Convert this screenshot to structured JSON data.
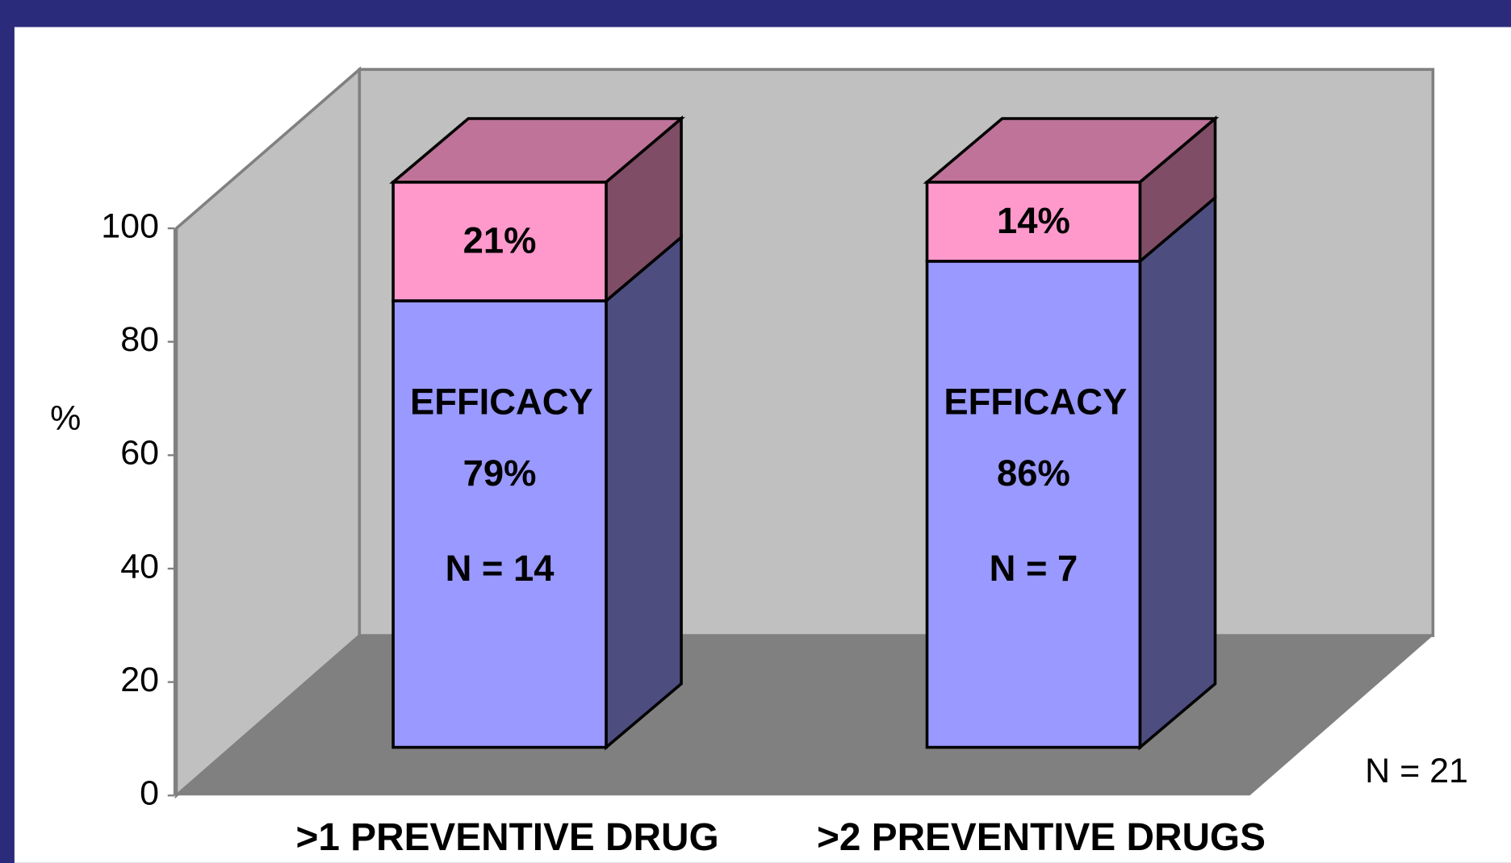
{
  "chart_data": {
    "type": "bar3d_stacked",
    "categories": [
      ">1 PREVENTIVE DRUG",
      ">2 PREVENTIVE DRUGS"
    ],
    "series": [
      {
        "name": "EFFICACY",
        "color": "#9999ff",
        "values": [
          79,
          86
        ],
        "value_labels": [
          "79%",
          "86%"
        ]
      },
      {
        "color": "#ff99cc",
        "values": [
          21,
          14
        ],
        "value_labels": [
          "21%",
          "14%"
        ]
      }
    ],
    "bar_annotations": [
      "N = 14",
      "N = 7"
    ],
    "annotation": "N = 21",
    "ylabel": "%",
    "ylim": [
      0,
      100
    ],
    "yticks": [
      0,
      20,
      40,
      60,
      80,
      100
    ]
  }
}
